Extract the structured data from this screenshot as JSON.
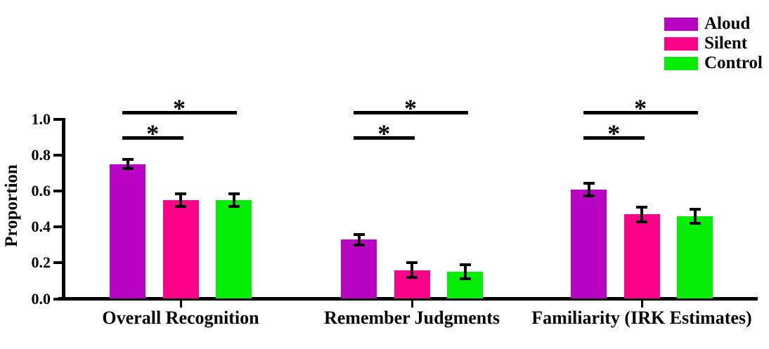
{
  "figure": {
    "background": "#FFFFFF",
    "axis_color": "#000000",
    "text_color": "#000000"
  },
  "chart_data": {
    "type": "bar",
    "title": "",
    "xlabel": "",
    "ylabel": "Proportion",
    "ylim": [
      0,
      1.0
    ],
    "ytick_labels": [
      "0.0",
      "0.2",
      "0.4",
      "0.6",
      "0.8",
      "1.0"
    ],
    "grid": false,
    "legend_position": "top-right",
    "error_bars_shown": true,
    "categories": [
      "Overall Recognition",
      "Remember Judgments",
      "Familiarity (IRK Estimates)"
    ],
    "series": [
      {
        "name": "Aloud",
        "color": "#B803C3",
        "values": [
          0.75,
          0.33,
          0.61
        ],
        "errors": [
          0.025,
          0.03,
          0.035
        ]
      },
      {
        "name": "Silent",
        "color": "#FC0289",
        "values": [
          0.55,
          0.16,
          0.47
        ],
        "errors": [
          0.035,
          0.04,
          0.04
        ]
      },
      {
        "name": "Control",
        "color": "#05EE05",
        "values": [
          0.55,
          0.15,
          0.46
        ],
        "errors": [
          0.035,
          0.04,
          0.04
        ]
      }
    ],
    "significance_markers": [
      {
        "category": "Overall Recognition",
        "comparisons": [
          {
            "between": [
              "Aloud",
              "Silent"
            ],
            "label": "*"
          },
          {
            "between": [
              "Aloud",
              "Control"
            ],
            "label": "*"
          }
        ]
      },
      {
        "category": "Remember Judgments",
        "comparisons": [
          {
            "between": [
              "Aloud",
              "Silent"
            ],
            "label": "*"
          },
          {
            "between": [
              "Aloud",
              "Control"
            ],
            "label": "*"
          }
        ]
      },
      {
        "category": "Familiarity (IRK Estimates)",
        "comparisons": [
          {
            "between": [
              "Aloud",
              "Silent"
            ],
            "label": "*"
          },
          {
            "between": [
              "Aloud",
              "Control"
            ],
            "label": "*"
          }
        ]
      }
    ]
  }
}
